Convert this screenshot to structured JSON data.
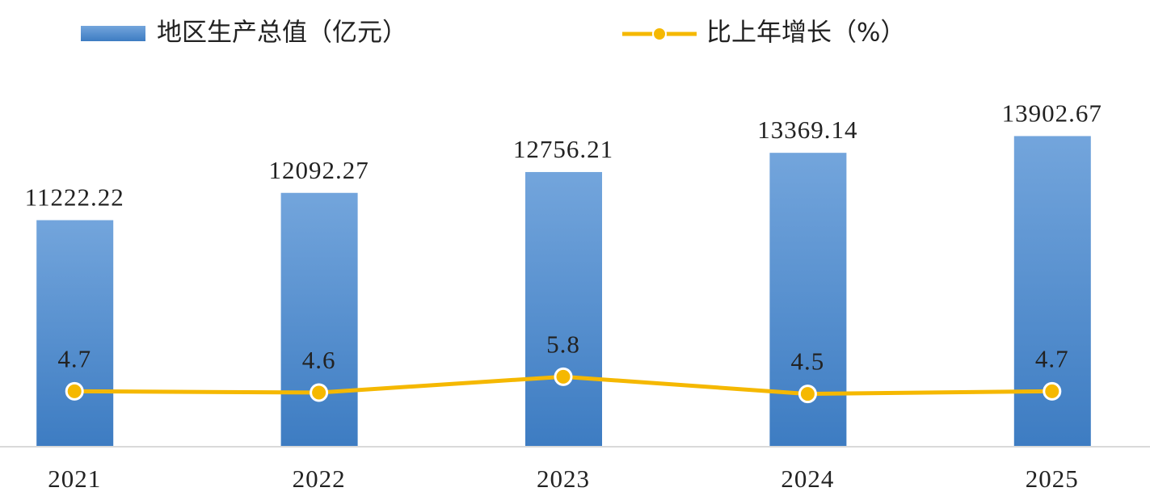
{
  "chart_data": {
    "type": "bar_line",
    "categories": [
      "2021",
      "2022",
      "2023",
      "2024",
      "2025"
    ],
    "series": [
      {
        "name": "地区生产总值（亿元）",
        "color": "#5b9bd5",
        "type": "bar",
        "values": [
          11222.22,
          12092.27,
          12756.21,
          13369.14,
          13902.67
        ]
      },
      {
        "name": "比上年增长（%）",
        "color": "#f5b800",
        "type": "line",
        "axis": "y2",
        "values": [
          4.7,
          4.6,
          5.8,
          4.5,
          4.7
        ]
      }
    ],
    "ylim": [
      4000,
      16000
    ],
    "y2lim": [
      0.5,
      29
    ],
    "grid": false
  }
}
